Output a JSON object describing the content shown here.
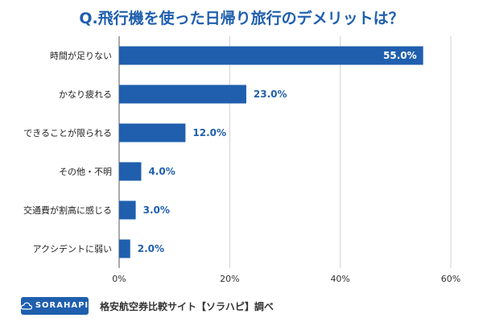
{
  "title": "Q.飛行機を使った日帰り旅行のデメリットは？",
  "footer": {
    "logo_text": "SORAHAPI",
    "source_text": "格安航空券比較サイト【ソラハピ】調べ"
  },
  "colors": {
    "bar": "#1f5fae",
    "label_inside": "#ffffff",
    "label_outside": "#1f5fae",
    "grid": "#d0d0d0",
    "axis": "#555555"
  },
  "chart_data": {
    "type": "bar",
    "orientation": "horizontal",
    "title": "Q.飛行機を使った日帰り旅行のデメリットは？",
    "categories": [
      "時間が足りない",
      "かなり疲れる",
      "できることが限られる",
      "その他・不明",
      "交通費が割高に感じる",
      "アクシデントに弱い"
    ],
    "values": [
      55.0,
      23.0,
      12.0,
      4.0,
      3.0,
      2.0
    ],
    "value_labels": [
      "55.0%",
      "23.0%",
      "12.0%",
      "4.0%",
      "3.0%",
      "2.0%"
    ],
    "unit": "%",
    "xlim": [
      0,
      60
    ],
    "xticks": [
      0,
      20,
      40,
      60
    ],
    "xtick_labels": [
      "0%",
      "20%",
      "40%",
      "60%"
    ],
    "grid": true,
    "legend": "none"
  }
}
